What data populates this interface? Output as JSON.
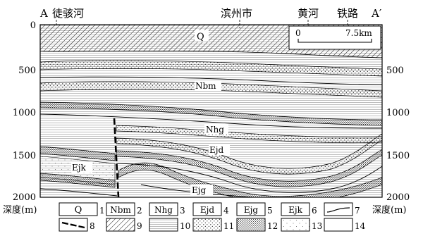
{
  "profile": {
    "endpoint_left": "A",
    "endpoint_right": "A′",
    "places": [
      "徒骇河",
      "滨州市",
      "黄河",
      "铁路"
    ]
  },
  "depth_axis": {
    "ticks": [
      "0",
      "500",
      "1000",
      "1500",
      "2000"
    ],
    "label": "深度(m)"
  },
  "scale_bar": {
    "start": "0",
    "end": "7.5km"
  },
  "strata": [
    "Q",
    "Nbm",
    "Nhg",
    "Ejd",
    "Ejk",
    "Ejg"
  ],
  "legend": [
    {
      "symbol": "Q",
      "num": "1"
    },
    {
      "symbol": "Nbm",
      "num": "2"
    },
    {
      "symbol": "Nhg",
      "num": "3"
    },
    {
      "symbol": "Ejd",
      "num": "4"
    },
    {
      "symbol": "Ejg",
      "num": "5"
    },
    {
      "symbol": "Ejk",
      "num": "6"
    },
    {
      "symbol": "",
      "num": "7"
    },
    {
      "symbol": "",
      "num": "8"
    },
    {
      "symbol": "",
      "num": "9"
    },
    {
      "symbol": "",
      "num": "10"
    },
    {
      "symbol": "",
      "num": "11"
    },
    {
      "symbol": "",
      "num": "12"
    },
    {
      "symbol": "",
      "num": "13"
    },
    {
      "symbol": "",
      "num": "14"
    }
  ]
}
